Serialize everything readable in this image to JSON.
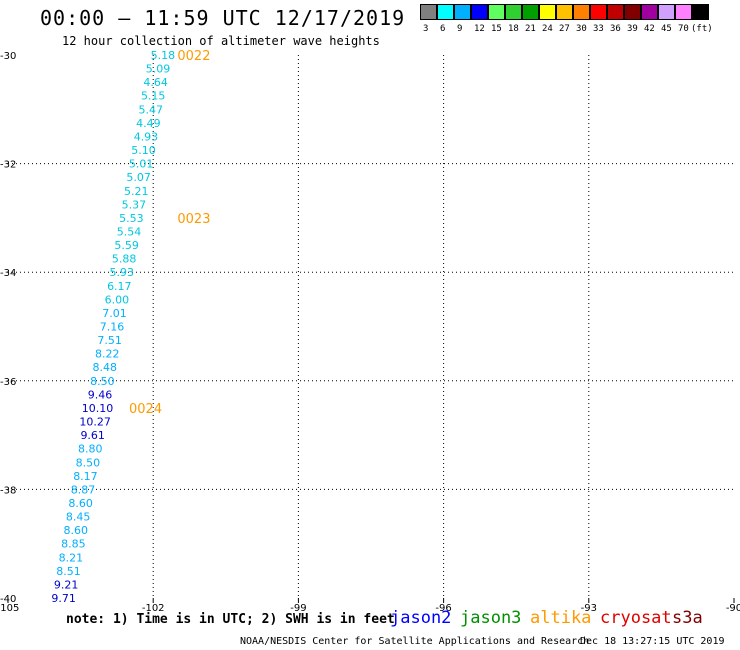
{
  "title": "00:00 – 11:59 UTC 12/17/2019",
  "subtitle": "12 hour collection of altimeter wave heights",
  "legend": {
    "colors": [
      "#808080",
      "#00ffff",
      "#00b0ff",
      "#0000ff",
      "#60ff60",
      "#30d030",
      "#00a000",
      "#ffff00",
      "#ffc000",
      "#ff8000",
      "#ff0000",
      "#c00000",
      "#800000",
      "#a000a0",
      "#d0a0ff",
      "#ff80ff",
      "#000000"
    ],
    "labels": [
      "3",
      "6",
      "9",
      "12",
      "15",
      "18",
      "21",
      "24",
      "27",
      "30",
      "33",
      "36",
      "39",
      "42",
      "45",
      "70",
      "(ft)"
    ]
  },
  "chart_data": {
    "type": "map",
    "lon_ticks": [
      "-105",
      "-102",
      "-99",
      "-96",
      "-93",
      "-90"
    ],
    "lat_ticks": [
      "-30",
      "-32",
      "-34",
      "-36",
      "-38",
      "-40"
    ],
    "lon_range": [
      -105,
      -90
    ],
    "lat_range": [
      -40,
      -30
    ],
    "grid": true,
    "observations": [
      {
        "v": "5.18",
        "lon": -101.8,
        "lat": -30.0,
        "c": "#00c8e0"
      },
      {
        "v": "5.09",
        "lon": -101.9,
        "lat": -30.25,
        "c": "#00c8e0"
      },
      {
        "v": "4.64",
        "lon": -101.95,
        "lat": -30.5,
        "c": "#00c8e0"
      },
      {
        "v": "5.15",
        "lon": -102.0,
        "lat": -30.75,
        "c": "#00c8e0"
      },
      {
        "v": "5.47",
        "lon": -102.05,
        "lat": -31.0,
        "c": "#00c8e0"
      },
      {
        "v": "4.49",
        "lon": -102.1,
        "lat": -31.25,
        "c": "#00c8e0"
      },
      {
        "v": "4.93",
        "lon": -102.15,
        "lat": -31.5,
        "c": "#00c8e0"
      },
      {
        "v": "5.10",
        "lon": -102.2,
        "lat": -31.75,
        "c": "#00c8e0"
      },
      {
        "v": "5.01",
        "lon": -102.25,
        "lat": -32.0,
        "c": "#00c8e0"
      },
      {
        "v": "5.07",
        "lon": -102.3,
        "lat": -32.25,
        "c": "#00c8e0"
      },
      {
        "v": "5.21",
        "lon": -102.35,
        "lat": -32.5,
        "c": "#00c8e0"
      },
      {
        "v": "5.37",
        "lon": -102.4,
        "lat": -32.75,
        "c": "#00c8e0"
      },
      {
        "v": "5.53",
        "lon": -102.45,
        "lat": -33.0,
        "c": "#00c8e0"
      },
      {
        "v": "5.54",
        "lon": -102.5,
        "lat": -33.25,
        "c": "#00c8e0"
      },
      {
        "v": "5.59",
        "lon": -102.55,
        "lat": -33.5,
        "c": "#00c8e0"
      },
      {
        "v": "5.88",
        "lon": -102.6,
        "lat": -33.75,
        "c": "#00c8e0"
      },
      {
        "v": "5.93",
        "lon": -102.65,
        "lat": -34.0,
        "c": "#00c8e0"
      },
      {
        "v": "6.17",
        "lon": -102.7,
        "lat": -34.25,
        "c": "#00c8e0"
      },
      {
        "v": "6.00",
        "lon": -102.75,
        "lat": -34.5,
        "c": "#00c8e0"
      },
      {
        "v": "7.01",
        "lon": -102.8,
        "lat": -34.75,
        "c": "#00b0ff"
      },
      {
        "v": "7.16",
        "lon": -102.85,
        "lat": -35.0,
        "c": "#00b0ff"
      },
      {
        "v": "7.51",
        "lon": -102.9,
        "lat": -35.25,
        "c": "#00b0ff"
      },
      {
        "v": "8.22",
        "lon": -102.95,
        "lat": -35.5,
        "c": "#00b0ff"
      },
      {
        "v": "8.48",
        "lon": -103.0,
        "lat": -35.75,
        "c": "#00b0ff"
      },
      {
        "v": "8.50",
        "lon": -103.05,
        "lat": -36.0,
        "c": "#00b0ff"
      },
      {
        "v": "9.46",
        "lon": -103.1,
        "lat": -36.25,
        "c": "#0000cc"
      },
      {
        "v": "10.10",
        "lon": -103.15,
        "lat": -36.5,
        "c": "#0000cc"
      },
      {
        "v": "10.27",
        "lon": -103.2,
        "lat": -36.75,
        "c": "#0000cc"
      },
      {
        "v": "9.61",
        "lon": -103.25,
        "lat": -37.0,
        "c": "#0000cc"
      },
      {
        "v": "8.80",
        "lon": -103.3,
        "lat": -37.25,
        "c": "#00b0ff"
      },
      {
        "v": "8.50",
        "lon": -103.35,
        "lat": -37.5,
        "c": "#00b0ff"
      },
      {
        "v": "8.17",
        "lon": -103.4,
        "lat": -37.75,
        "c": "#00b0ff"
      },
      {
        "v": "8.87",
        "lon": -103.45,
        "lat": -38.0,
        "c": "#00b0ff"
      },
      {
        "v": "8.60",
        "lon": -103.5,
        "lat": -38.25,
        "c": "#00b0ff"
      },
      {
        "v": "8.45",
        "lon": -103.55,
        "lat": -38.5,
        "c": "#00b0ff"
      },
      {
        "v": "8.60",
        "lon": -103.6,
        "lat": -38.75,
        "c": "#00b0ff"
      },
      {
        "v": "8.85",
        "lon": -103.65,
        "lat": -39.0,
        "c": "#00b0ff"
      },
      {
        "v": "8.21",
        "lon": -103.7,
        "lat": -39.25,
        "c": "#00b0ff"
      },
      {
        "v": "8.51",
        "lon": -103.75,
        "lat": -39.5,
        "c": "#00b0ff"
      },
      {
        "v": "9.21",
        "lon": -103.8,
        "lat": -39.75,
        "c": "#0000cc"
      },
      {
        "v": "9.71",
        "lon": -103.85,
        "lat": -40.0,
        "c": "#0000cc"
      }
    ],
    "time_labels": [
      {
        "t": "0022",
        "lon": -101.5,
        "lat": -30.0
      },
      {
        "t": "0023",
        "lon": -101.5,
        "lat": -33.0
      },
      {
        "t": "0024",
        "lon": -102.5,
        "lat": -36.5
      }
    ]
  },
  "note": "note: 1) Time is in UTC; 2) SWH is in feet",
  "satellites": [
    {
      "name": "jason2",
      "color": "#0000ff"
    },
    {
      "name": "jason3",
      "color": "#009000"
    },
    {
      "name": "altika",
      "color": "#ff9900"
    },
    {
      "name": "cryosat",
      "color": "#e00000"
    },
    {
      "name": "s3a",
      "color": "#800000"
    }
  ],
  "credit": "NOAA/NESDIS Center for Satellite Applications and Research",
  "timestamp": "Dec 18 13:27:15 UTC 2019"
}
